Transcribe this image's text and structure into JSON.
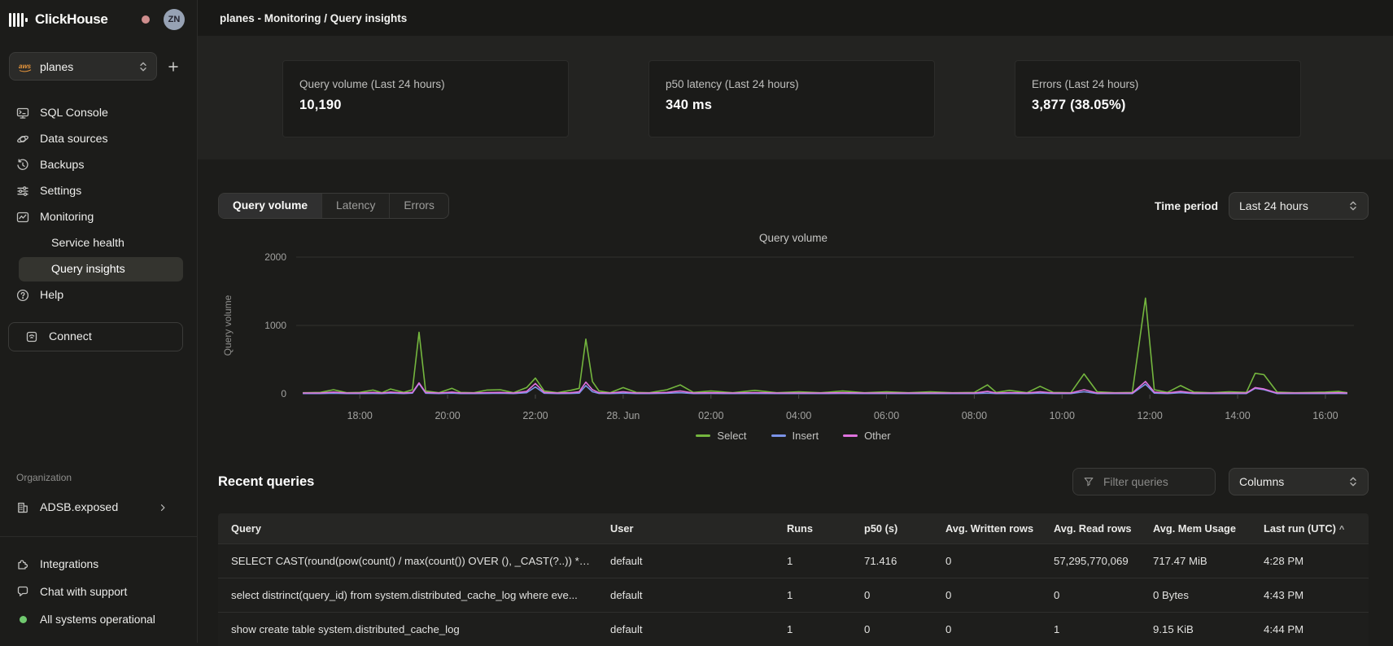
{
  "topbar": {
    "title": "planes - Monitoring / Query insights"
  },
  "sidebar": {
    "brand": "ClickHouse",
    "avatar_initials": "ZN",
    "service_selector": {
      "value": "planes",
      "icon": "aws-icon"
    },
    "nav": [
      {
        "label": "SQL Console",
        "icon": "console-icon"
      },
      {
        "label": "Data sources",
        "icon": "data-sources-icon"
      },
      {
        "label": "Backups",
        "icon": "backups-icon"
      },
      {
        "label": "Settings",
        "icon": "settings-icon"
      },
      {
        "label": "Monitoring",
        "icon": "monitoring-icon"
      }
    ],
    "monitoring_children": [
      {
        "label": "Service health",
        "active": false
      },
      {
        "label": "Query insights",
        "active": true
      }
    ],
    "help": {
      "label": "Help",
      "icon": "help-icon"
    },
    "connect_label": "Connect",
    "organization": {
      "section_label": "Organization",
      "name": "ADSB.exposed",
      "icon": "building-icon"
    },
    "footer": [
      {
        "label": "Integrations",
        "icon": "integrations-icon"
      },
      {
        "label": "Chat with support",
        "icon": "chat-icon"
      },
      {
        "label": "All systems operational",
        "icon": "status-dot",
        "status_color": "#70c96f"
      }
    ]
  },
  "stats": [
    {
      "label": "Query volume (Last 24 hours)",
      "value": "10,190"
    },
    {
      "label": "p50 latency (Last 24 hours)",
      "value": "340 ms"
    },
    {
      "label": "Errors (Last 24 hours)",
      "value": "3,877 (38.05%)"
    }
  ],
  "tabs": [
    {
      "label": "Query volume",
      "active": true
    },
    {
      "label": "Latency",
      "active": false
    },
    {
      "label": "Errors",
      "active": false
    }
  ],
  "time_period": {
    "label": "Time period",
    "value": "Last 24 hours"
  },
  "chart_data": {
    "type": "line",
    "title": "Query volume",
    "ylabel": "Query volume",
    "ylim": [
      0,
      2000
    ],
    "yticks": [
      0,
      1000,
      2000
    ],
    "xlim": [
      16.55,
      40.65
    ],
    "grid": true,
    "legend_position": "bottom",
    "xticks": [
      {
        "v": 18,
        "label": "18:00"
      },
      {
        "v": 20,
        "label": "20:00"
      },
      {
        "v": 22,
        "label": "22:00"
      },
      {
        "v": 24,
        "label": "28. Jun"
      },
      {
        "v": 26,
        "label": "02:00"
      },
      {
        "v": 28,
        "label": "04:00"
      },
      {
        "v": 30,
        "label": "06:00"
      },
      {
        "v": 32,
        "label": "08:00"
      },
      {
        "v": 34,
        "label": "10:00"
      },
      {
        "v": 36,
        "label": "12:00"
      },
      {
        "v": 38,
        "label": "14:00"
      },
      {
        "v": 40,
        "label": "16:00"
      }
    ],
    "x": [
      16.7,
      17.1,
      17.4,
      17.7,
      18.0,
      18.3,
      18.5,
      18.7,
      19.0,
      19.2,
      19.35,
      19.5,
      19.8,
      20.1,
      20.3,
      20.6,
      20.9,
      21.2,
      21.5,
      21.8,
      22.0,
      22.2,
      22.5,
      22.8,
      23.0,
      23.15,
      23.3,
      23.45,
      23.7,
      24.0,
      24.3,
      24.6,
      25.0,
      25.3,
      25.6,
      26.0,
      26.5,
      27.0,
      27.5,
      28.0,
      28.5,
      29.0,
      29.5,
      30.0,
      30.5,
      31.0,
      31.5,
      32.0,
      32.3,
      32.5,
      32.8,
      33.2,
      33.5,
      33.8,
      34.2,
      34.5,
      34.8,
      35.2,
      35.6,
      35.9,
      36.1,
      36.4,
      36.7,
      37.0,
      37.4,
      37.8,
      38.2,
      38.4,
      38.6,
      38.9,
      39.3,
      39.7,
      40.0,
      40.3,
      40.5
    ],
    "series": [
      {
        "name": "Select",
        "color": "#74b63e",
        "values": [
          15,
          20,
          60,
          15,
          20,
          55,
          15,
          70,
          20,
          60,
          900,
          40,
          15,
          80,
          20,
          15,
          55,
          60,
          15,
          90,
          230,
          40,
          15,
          50,
          80,
          800,
          180,
          40,
          15,
          90,
          20,
          15,
          60,
          130,
          20,
          40,
          15,
          50,
          15,
          30,
          15,
          40,
          15,
          30,
          15,
          30,
          15,
          20,
          130,
          20,
          50,
          15,
          110,
          20,
          15,
          290,
          30,
          15,
          20,
          1400,
          60,
          20,
          120,
          25,
          15,
          30,
          20,
          300,
          280,
          25,
          15,
          20,
          25,
          35,
          15
        ]
      },
      {
        "name": "Insert",
        "color": "#7b93e8",
        "values": [
          3,
          3,
          8,
          3,
          3,
          5,
          3,
          10,
          3,
          10,
          150,
          8,
          3,
          10,
          3,
          3,
          5,
          8,
          3,
          15,
          100,
          8,
          3,
          5,
          10,
          120,
          30,
          5,
          3,
          10,
          3,
          3,
          8,
          15,
          3,
          5,
          3,
          5,
          3,
          3,
          3,
          5,
          3,
          3,
          3,
          3,
          3,
          3,
          10,
          3,
          5,
          3,
          10,
          3,
          3,
          30,
          3,
          3,
          3,
          140,
          10,
          3,
          15,
          3,
          3,
          3,
          3,
          80,
          60,
          3,
          3,
          3,
          3,
          5,
          3
        ]
      },
      {
        "name": "Other",
        "color": "#df72de",
        "values": [
          12,
          12,
          25,
          12,
          12,
          20,
          12,
          25,
          12,
          20,
          160,
          20,
          12,
          25,
          12,
          12,
          18,
          20,
          12,
          35,
          150,
          20,
          12,
          15,
          30,
          170,
          60,
          15,
          12,
          30,
          12,
          12,
          20,
          40,
          12,
          15,
          12,
          18,
          12,
          12,
          12,
          15,
          12,
          12,
          12,
          12,
          12,
          12,
          35,
          12,
          18,
          12,
          30,
          12,
          12,
          60,
          12,
          12,
          12,
          180,
          25,
          12,
          35,
          12,
          12,
          12,
          12,
          90,
          70,
          12,
          12,
          12,
          12,
          15,
          12
        ]
      }
    ]
  },
  "recent_queries": {
    "title": "Recent queries",
    "filter_placeholder": "Filter queries",
    "columns_label": "Columns",
    "table": {
      "headers": [
        "Query",
        "User",
        "Runs",
        "p50 (s)",
        "Avg. Written rows",
        "Avg. Read rows",
        "Avg. Mem Usage",
        "Last run (UTC)"
      ],
      "sort_column": "Last run (UTC)",
      "sort_indicator": "^",
      "rows": [
        {
          "query": "SELECT CAST(round(pow(count() / max(count()) OVER (), _CAST(?..)) * ...",
          "user": "default",
          "runs": "1",
          "p50": "71.416",
          "written": "0",
          "read": "57,295,770,069",
          "mem": "717.47 MiB",
          "last_run": "4:28 PM"
        },
        {
          "query": "select distrinct(query_id) from system.distributed_cache_log where eve...",
          "user": "default",
          "runs": "1",
          "p50": "0",
          "written": "0",
          "read": "0",
          "mem": "0 Bytes",
          "last_run": "4:43 PM"
        },
        {
          "query": "show create table system.distributed_cache_log",
          "user": "default",
          "runs": "1",
          "p50": "0",
          "written": "0",
          "read": "1",
          "mem": "9.15 KiB",
          "last_run": "4:44 PM"
        }
      ]
    }
  }
}
